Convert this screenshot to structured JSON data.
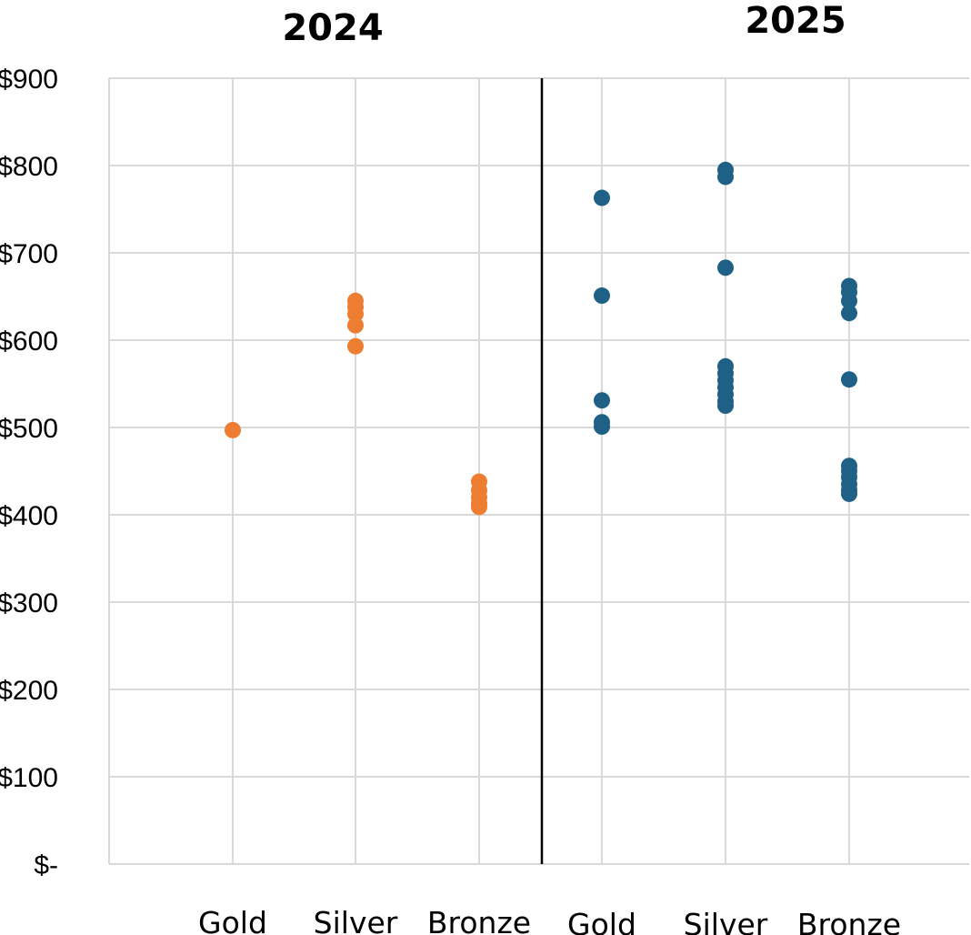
{
  "chart_data": {
    "type": "scatter",
    "yaxis": {
      "ylim": [
        0,
        900
      ],
      "ticks": [
        0,
        100,
        200,
        300,
        400,
        500,
        600,
        700,
        800,
        900
      ],
      "tick_labels": [
        "$-",
        "$100",
        "$200",
        "$300",
        "$400",
        "$500",
        "$600",
        "$700",
        "$800",
        "$900"
      ]
    },
    "grid": true,
    "panels": [
      {
        "title": "2024",
        "color": "#ed7d31",
        "categories": [
          "Gold",
          "Silver",
          "Bronze"
        ],
        "points": [
          {
            "category": "Gold",
            "y": 497
          },
          {
            "category": "Silver",
            "y": 645
          },
          {
            "category": "Silver",
            "y": 638
          },
          {
            "category": "Silver",
            "y": 630
          },
          {
            "category": "Silver",
            "y": 617
          },
          {
            "category": "Silver",
            "y": 593
          },
          {
            "category": "Bronze",
            "y": 438
          },
          {
            "category": "Bronze",
            "y": 428
          },
          {
            "category": "Bronze",
            "y": 420
          },
          {
            "category": "Bronze",
            "y": 413
          },
          {
            "category": "Bronze",
            "y": 409
          }
        ]
      },
      {
        "title": "2025",
        "color": "#1f6186",
        "categories": [
          "Gold",
          "Silver",
          "Bronze"
        ],
        "points": [
          {
            "category": "Gold",
            "y": 763
          },
          {
            "category": "Gold",
            "y": 651
          },
          {
            "category": "Gold",
            "y": 531
          },
          {
            "category": "Gold",
            "y": 506
          },
          {
            "category": "Gold",
            "y": 501
          },
          {
            "category": "Silver",
            "y": 795
          },
          {
            "category": "Silver",
            "y": 787
          },
          {
            "category": "Silver",
            "y": 683
          },
          {
            "category": "Silver",
            "y": 570
          },
          {
            "category": "Silver",
            "y": 562
          },
          {
            "category": "Silver",
            "y": 554
          },
          {
            "category": "Silver",
            "y": 546
          },
          {
            "category": "Silver",
            "y": 538
          },
          {
            "category": "Silver",
            "y": 530
          },
          {
            "category": "Silver",
            "y": 525
          },
          {
            "category": "Bronze",
            "y": 662
          },
          {
            "category": "Bronze",
            "y": 655
          },
          {
            "category": "Bronze",
            "y": 645
          },
          {
            "category": "Bronze",
            "y": 631
          },
          {
            "category": "Bronze",
            "y": 555
          },
          {
            "category": "Bronze",
            "y": 456
          },
          {
            "category": "Bronze",
            "y": 450
          },
          {
            "category": "Bronze",
            "y": 443
          },
          {
            "category": "Bronze",
            "y": 435
          },
          {
            "category": "Bronze",
            "y": 428
          },
          {
            "category": "Bronze",
            "y": 424
          }
        ]
      }
    ]
  }
}
